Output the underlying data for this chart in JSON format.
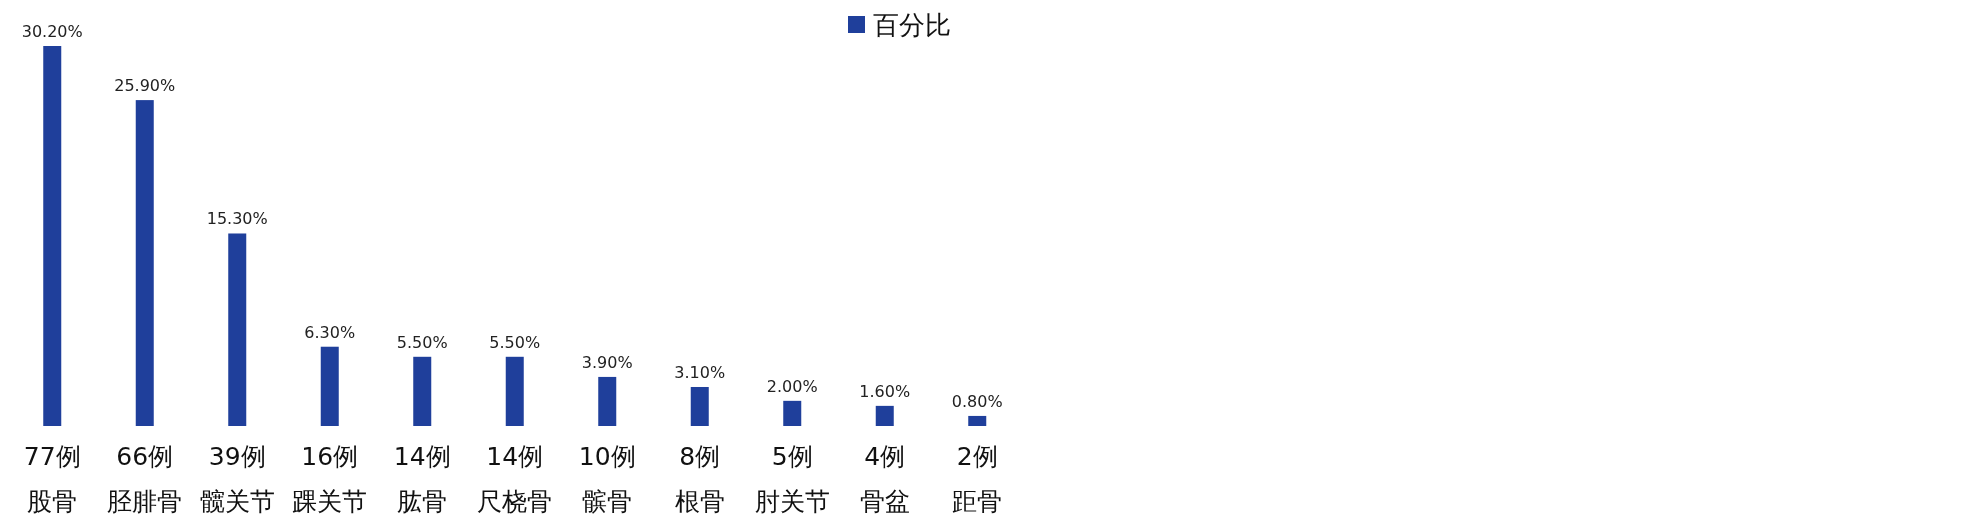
{
  "chart_data": {
    "type": "bar",
    "categories": [
      "77例股骨",
      "66例胫腓骨",
      "39例髋关节",
      "16例踝关节",
      "14例肱骨",
      "14例尺桡骨",
      "10例髌骨",
      "8例根骨",
      "5例肘关节",
      "4例骨盆",
      "2例距骨"
    ],
    "series": [
      {
        "name": "百分比",
        "color": "#1f3f9b",
        "values": [
          30.2,
          25.9,
          15.3,
          6.3,
          5.5,
          5.5,
          3.9,
          3.1,
          2.0,
          1.6,
          0.8
        ],
        "value_labels": [
          "30.20%",
          "25.90%",
          "15.30%",
          "6.30%",
          "5.50%",
          "5.50%",
          "3.90%",
          "3.10%",
          "2.00%",
          "1.60%",
          "0.80%"
        ]
      }
    ],
    "legend": "top"
  }
}
